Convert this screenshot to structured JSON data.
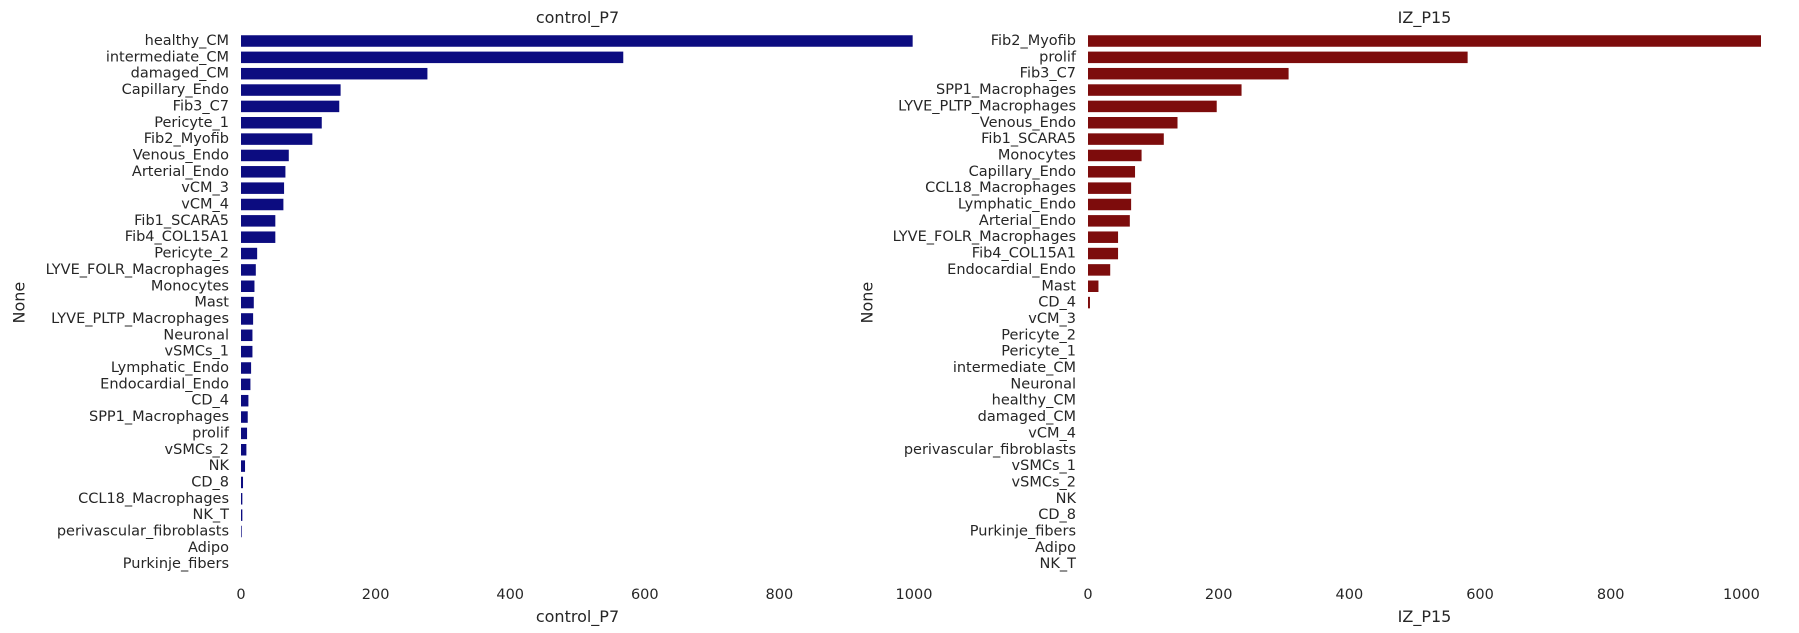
{
  "chart_data": [
    {
      "type": "bar",
      "orientation": "horizontal",
      "title": "control_P7",
      "xlabel": "control_P7",
      "ylabel": "None",
      "xlim": [
        0,
        1000
      ],
      "xticks": [
        0,
        200,
        400,
        600,
        800,
        1000
      ],
      "color": "#0c0c80",
      "grid": false,
      "categories": [
        "healthy_CM",
        "intermediate_CM",
        "damaged_CM",
        "Capillary_Endo",
        "Fib3_C7",
        "Pericyte_1",
        "Fib2_Myofib",
        "Venous_Endo",
        "Arterial_Endo",
        "vCM_3",
        "vCM_4",
        "Fib1_SCARA5",
        "Fib4_COL15A1",
        "Pericyte_2",
        "LYVE_FOLR_Macrophages",
        "Monocytes",
        "Mast",
        "LYVE_PLTP_Macrophages",
        "Neuronal",
        "vSMCs_1",
        "Lymphatic_Endo",
        "Endocardial_Endo",
        "CD_4",
        "SPP1_Macrophages",
        "prolif",
        "vSMCs_2",
        "NK",
        "CD_8",
        "CCL18_Macrophages",
        "NK_T",
        "perivascular_fibroblasts",
        "Adipo",
        "Purkinje_fibers"
      ],
      "values": [
        998,
        568,
        277,
        148,
        146,
        120,
        106,
        71,
        66,
        64,
        63,
        51,
        51,
        24,
        22,
        20,
        19,
        18,
        17,
        17,
        15,
        14,
        11,
        10,
        9,
        8,
        6,
        3,
        2,
        2,
        1,
        0,
        0
      ]
    },
    {
      "type": "bar",
      "orientation": "horizontal",
      "title": "IZ_P15",
      "xlabel": "IZ_P15",
      "ylabel": "None",
      "xlim": [
        0,
        1030
      ],
      "xticks": [
        0,
        200,
        400,
        600,
        800,
        1000
      ],
      "color": "#7d0c0c",
      "grid": false,
      "categories": [
        "Fib2_Myofib",
        "prolif",
        "Fib3_C7",
        "SPP1_Macrophages",
        "LYVE_PLTP_Macrophages",
        "Venous_Endo",
        "Fib1_SCARA5",
        "Monocytes",
        "Capillary_Endo",
        "CCL18_Macrophages",
        "Lymphatic_Endo",
        "Arterial_Endo",
        "LYVE_FOLR_Macrophages",
        "Fib4_COL15A1",
        "Endocardial_Endo",
        "Mast",
        "CD_4",
        "vCM_3",
        "Pericyte_2",
        "Pericyte_1",
        "intermediate_CM",
        "Neuronal",
        "healthy_CM",
        "damaged_CM",
        "vCM_4",
        "perivascular_fibroblasts",
        "vSMCs_1",
        "vSMCs_2",
        "NK",
        "CD_8",
        "Purkinje_fibers",
        "Adipo",
        "NK_T"
      ],
      "values": [
        1030,
        581,
        307,
        235,
        197,
        137,
        116,
        82,
        72,
        66,
        66,
        64,
        46,
        46,
        34,
        16,
        3,
        0,
        0,
        0,
        0,
        0,
        0,
        0,
        0,
        0,
        0,
        0,
        0,
        0,
        0,
        0,
        0
      ]
    }
  ]
}
